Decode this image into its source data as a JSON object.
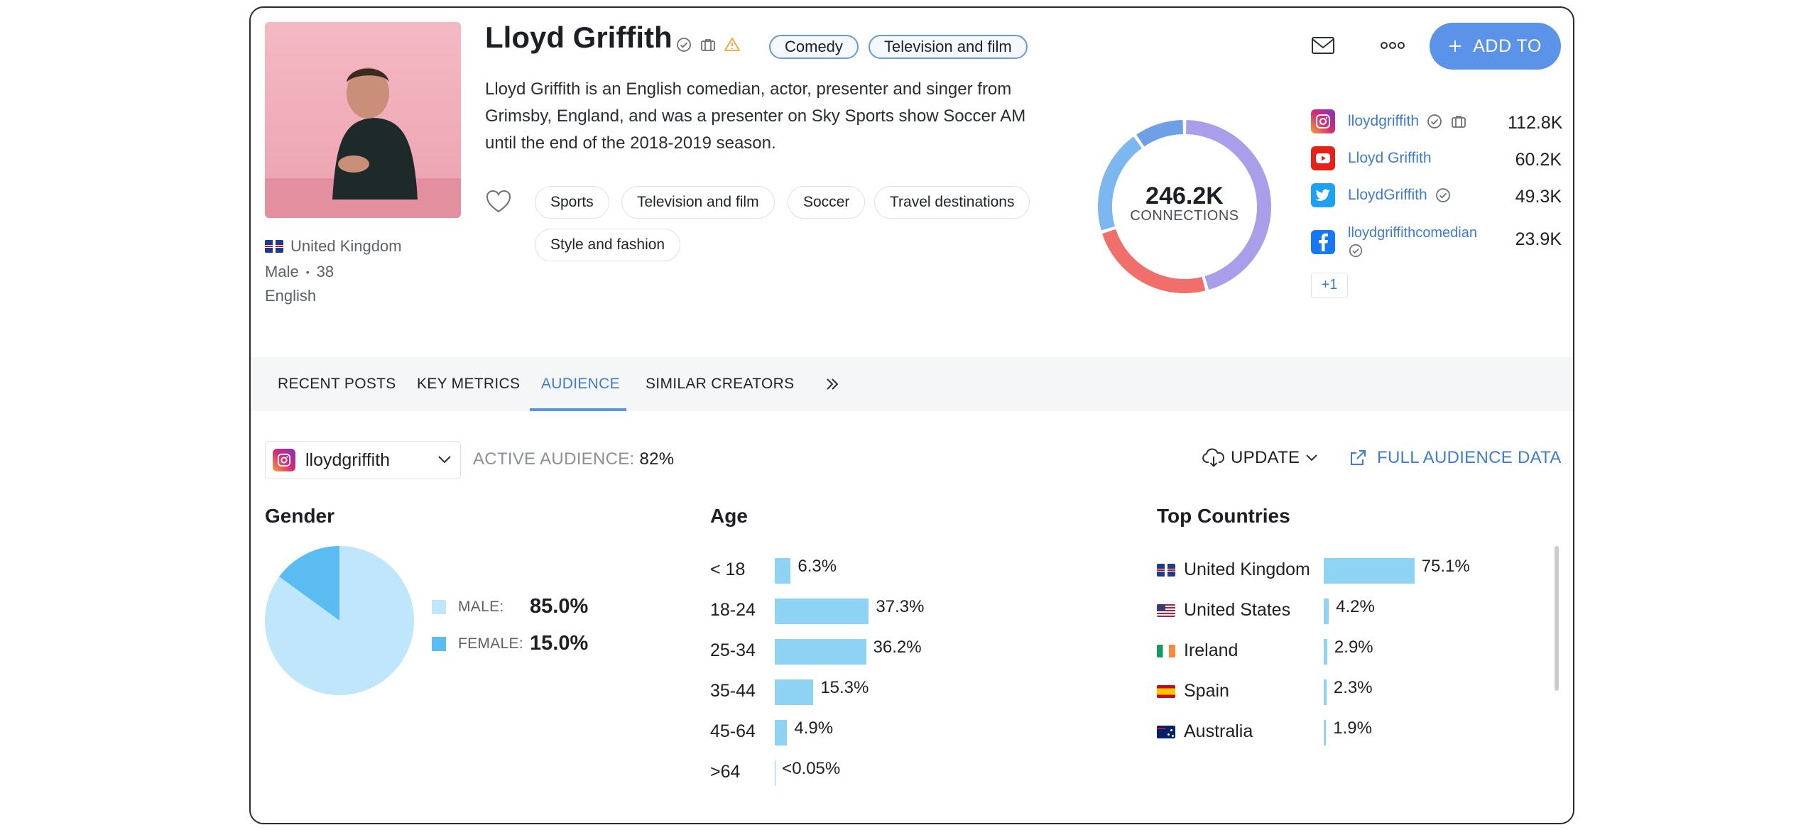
{
  "profile": {
    "name": "Lloyd Griffith",
    "categories": [
      "Comedy",
      "Television and film"
    ],
    "bio": "Lloyd Griffith is an English comedian, actor, presenter and singer from Grimsby, England, and was a presenter on Sky Sports show Soccer AM until the end of the 2018-2019 season.",
    "country": "United Kingdom",
    "gender": "Male",
    "age": "38",
    "language": "English",
    "interests": [
      "Sports",
      "Television and film",
      "Soccer",
      "Travel destinations",
      "Style and fashion"
    ]
  },
  "connections": {
    "value": "246.2K",
    "label": "CONNECTIONS",
    "segments": [
      {
        "name": "Instagram",
        "value": 112.8,
        "color": "#a99ee9"
      },
      {
        "name": "YouTube",
        "value": 60.2,
        "color": "#f06f6b"
      },
      {
        "name": "Twitter",
        "value": 49.3,
        "color": "#7db7f0"
      },
      {
        "name": "Facebook",
        "value": 23.9,
        "color": "#6f9fe6"
      }
    ]
  },
  "socials": [
    {
      "platform": "instagram-logo-icon",
      "handle": "lloydgriffith",
      "count": "112.8K",
      "color": "#c13584"
    },
    {
      "platform": "youtube-logo-icon",
      "handle": "Lloyd Griffith",
      "count": "60.2K",
      "color": "#e62117"
    },
    {
      "platform": "twitter-logo-icon",
      "handle": "LloydGriffith",
      "count": "49.3K",
      "color": "#1da1f2"
    },
    {
      "platform": "facebook-logo-icon",
      "handle": "lloydgriffithcomedian",
      "count": "23.9K",
      "color": "#1877f2"
    }
  ],
  "more_socials": "+1",
  "actions": {
    "add_to": "ADD TO"
  },
  "tabs": [
    "RECENT POSTS",
    "KEY METRICS",
    "AUDIENCE",
    "SIMILAR CREATORS"
  ],
  "active_tab": "AUDIENCE",
  "audience": {
    "account": "lloydgriffith",
    "active_label": "ACTIVE AUDIENCE:",
    "active_value": "82%",
    "update_label": "UPDATE",
    "full_data_label": "FULL AUDIENCE DATA"
  },
  "chart_data": [
    {
      "type": "pie",
      "title": "Gender",
      "categories": [
        "MALE:",
        "FEMALE:"
      ],
      "values": [
        85.0,
        15.0
      ],
      "labels": [
        "85.0%",
        "15.0%"
      ],
      "colors": [
        "#bfe6fa",
        "#5bbcf2"
      ],
      "legend": "right"
    },
    {
      "type": "bar",
      "title": "Age",
      "orientation": "horizontal",
      "categories": [
        "< 18",
        "18-24",
        "25-34",
        "35-44",
        "45-64",
        ">64"
      ],
      "values": [
        6.3,
        37.3,
        36.2,
        15.3,
        4.9,
        0.05
      ],
      "labels": [
        "6.3%",
        "37.3%",
        "36.2%",
        "15.3%",
        "4.9%",
        "<0.05%"
      ],
      "color": "#8fd3f4"
    },
    {
      "type": "bar",
      "title": "Top Countries",
      "orientation": "horizontal",
      "categories": [
        "United Kingdom",
        "United States",
        "Ireland",
        "Spain",
        "Australia"
      ],
      "values": [
        75.1,
        4.2,
        2.9,
        2.3,
        1.9
      ],
      "labels": [
        "75.1%",
        "4.2%",
        "2.9%",
        "2.3%",
        "1.9%"
      ],
      "color": "#8fd3f4"
    }
  ]
}
